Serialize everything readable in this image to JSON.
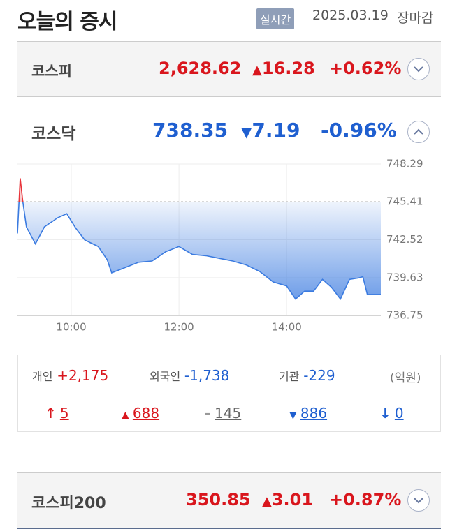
{
  "header": {
    "title": "오늘의 증시",
    "badge": "실시간",
    "date": "2025.03.19",
    "status": "장마감"
  },
  "kospi": {
    "name": "코스피",
    "value": "2,628.62",
    "change": "16.28",
    "rate": "+0.62%"
  },
  "kosdaq": {
    "name": "코스닥",
    "value": "738.35",
    "change": "7.19",
    "rate": "-0.96%"
  },
  "chart_data": {
    "type": "line",
    "x": [
      "09:00",
      "09:03",
      "09:06",
      "09:10",
      "09:20",
      "09:30",
      "09:45",
      "09:55",
      "10:05",
      "10:15",
      "10:30",
      "10:40",
      "10:45",
      "11:00",
      "11:15",
      "11:30",
      "11:45",
      "12:00",
      "12:15",
      "12:30",
      "12:45",
      "13:00",
      "13:15",
      "13:30",
      "13:45",
      "14:00",
      "14:10",
      "14:20",
      "14:30",
      "14:40",
      "14:50",
      "15:00",
      "15:10",
      "15:20",
      "15:25",
      "15:30",
      "15:45"
    ],
    "values": [
      743.0,
      747.2,
      745.4,
      743.5,
      742.2,
      743.5,
      744.2,
      744.5,
      743.4,
      742.5,
      742.0,
      741.0,
      740.0,
      740.4,
      740.8,
      740.9,
      741.6,
      742.0,
      741.4,
      741.3,
      741.1,
      740.9,
      740.6,
      740.1,
      739.3,
      739.0,
      738.0,
      738.6,
      738.6,
      739.5,
      738.9,
      738.0,
      739.5,
      739.6,
      739.7,
      738.35,
      738.35
    ],
    "xlim": [
      "09:00",
      "15:45"
    ],
    "xticks": [
      "10:00",
      "12:00",
      "14:00"
    ],
    "ylim": [
      736.75,
      748.29
    ],
    "yticks": [
      736.75,
      739.63,
      742.52,
      745.41,
      748.29
    ],
    "baseline": 745.41,
    "grid": true,
    "color": "#3b7be0",
    "up_color": "#e8343a"
  },
  "investors": [
    {
      "label": "개인",
      "value": "+2,175"
    },
    {
      "label": "외국인",
      "value": "-1,738"
    },
    {
      "label": "기관",
      "value": "-229"
    }
  ],
  "unit": "(억원)",
  "breadth": [
    "5",
    "688",
    "145",
    "886",
    "0"
  ],
  "kospi200": {
    "name": "코스피200",
    "value": "350.85",
    "change": "3.01",
    "rate": "+0.87%"
  }
}
